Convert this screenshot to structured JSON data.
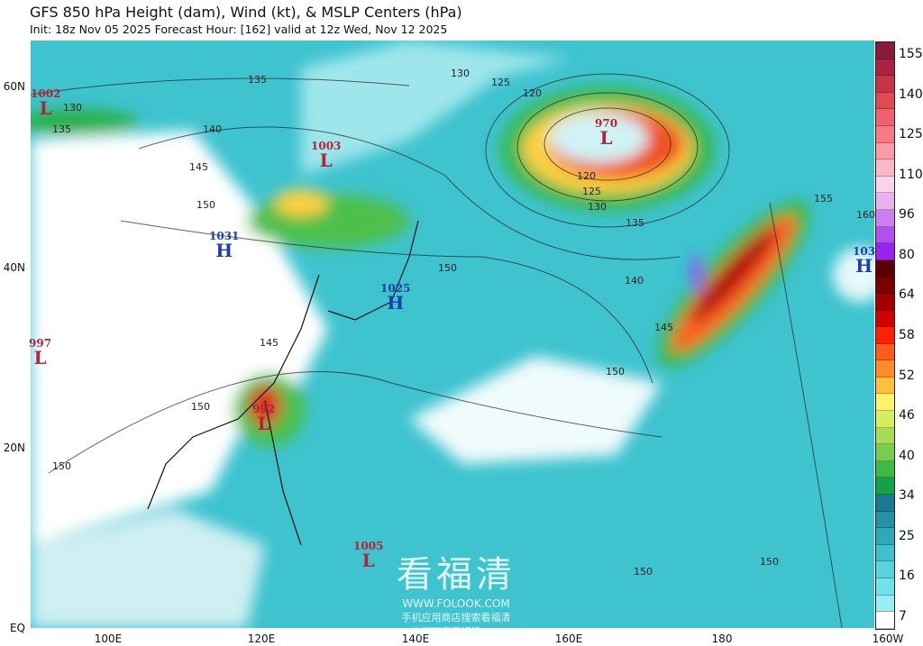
{
  "header": {
    "title": "GFS 850 hPa Height (dam), Wind (kt), & MSLP Centers (hPa)",
    "subtitle": "Init: 18z Nov 05 2025   Forecast Hour: [162]   valid at 12z Wed, Nov 12 2025"
  },
  "axes": {
    "lat_labels": [
      "60N",
      "40N",
      "20N",
      "EQ"
    ],
    "lon_labels": [
      "100E",
      "120E",
      "140E",
      "160E",
      "180",
      "160W"
    ]
  },
  "colorbar": {
    "labels": [
      "155",
      "140",
      "125",
      "110",
      "96",
      "80",
      "64",
      "58",
      "52",
      "46",
      "40",
      "34",
      "25",
      "16",
      "7"
    ],
    "colors": [
      "#8b1a3a",
      "#a8243f",
      "#c83447",
      "#e04a55",
      "#f06070",
      "#f57a85",
      "#f89aa8",
      "#fab7c8",
      "#f9d2ec",
      "#e8b2f0",
      "#cc7ff0",
      "#b050f0",
      "#9a22ee",
      "#5a0000",
      "#7a0000",
      "#a00000",
      "#d00000",
      "#ff2000",
      "#ff5a1e",
      "#ff8a2a",
      "#ffc03a",
      "#fff070",
      "#d8ec60",
      "#a8dc58",
      "#78cc50",
      "#40b848",
      "#18a048",
      "#1a7890",
      "#2690a8",
      "#30a8bc",
      "#40c0cc",
      "#58d2dc",
      "#70e2ea",
      "#98eef2",
      "#ffffff"
    ]
  },
  "pressure_centers": [
    {
      "type": "L",
      "value": "1002",
      "color": "#b3243a"
    },
    {
      "type": "L",
      "value": "1003",
      "color": "#b3243a"
    },
    {
      "type": "H",
      "value": "1031",
      "color": "#1a3fa8"
    },
    {
      "type": "H",
      "value": "1025",
      "color": "#1a3fa8"
    },
    {
      "type": "L",
      "value": "997",
      "color": "#b3243a"
    },
    {
      "type": "L",
      "value": "992",
      "color": "#b3243a"
    },
    {
      "type": "L",
      "value": "970",
      "color": "#b3243a"
    },
    {
      "type": "H",
      "value": "103",
      "color": "#1a3fa8"
    },
    {
      "type": "L",
      "value": "1005",
      "color": "#b3243a"
    }
  ],
  "contour_labels": [
    "130",
    "135",
    "140",
    "145",
    "150",
    "135",
    "130",
    "125",
    "120",
    "120",
    "125",
    "130",
    "135",
    "140",
    "145",
    "150",
    "155",
    "160",
    "150",
    "150",
    "150",
    "150",
    "145",
    "150"
  ],
  "watermark": {
    "name": "看福清",
    "url": "WWW.FOLOOK.COM",
    "line1": "手机应用商店搜索看福清",
    "line2": "均可下载看福清App"
  }
}
